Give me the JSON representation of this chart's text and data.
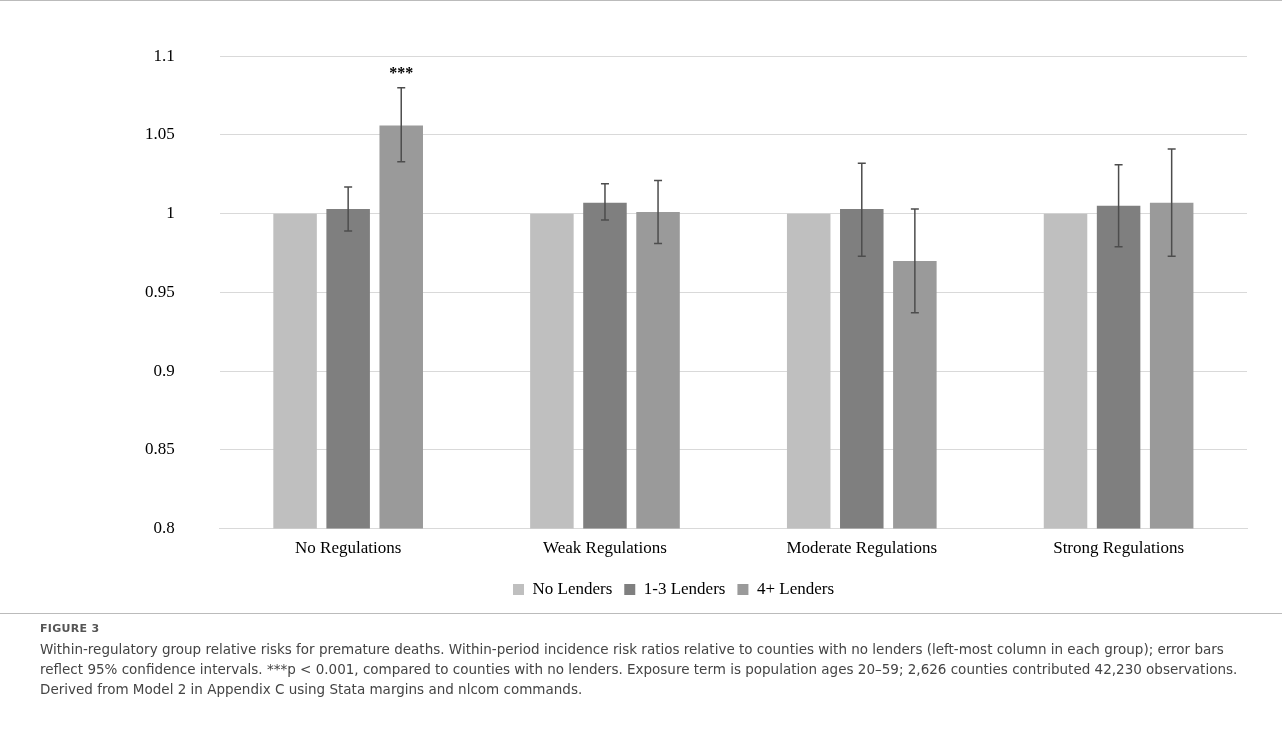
{
  "chart_data": {
    "type": "bar",
    "categories": [
      "No Regulations",
      "Weak Regulations",
      "Moderate Regulations",
      "Strong Regulations"
    ],
    "series": [
      {
        "name": "No Lenders",
        "color": "#bfbfbf",
        "values": [
          1,
          1,
          1,
          1
        ],
        "errors": [
          null,
          null,
          null,
          null
        ]
      },
      {
        "name": "1-3 Lenders",
        "color": "#7f7f7f",
        "values": [
          1.003,
          1.007,
          1.003,
          1.005
        ],
        "errors": [
          [
            0.989,
            1.017
          ],
          [
            0.996,
            1.019
          ],
          [
            0.973,
            1.032
          ],
          [
            0.979,
            1.031
          ]
        ]
      },
      {
        "name": "4+ Lenders",
        "color": "#9a9a9a",
        "values": [
          1.056,
          1.001,
          0.97,
          1.007
        ],
        "errors": [
          [
            1.033,
            1.08
          ],
          [
            0.981,
            1.021
          ],
          [
            0.937,
            1.003
          ],
          [
            0.973,
            1.041
          ]
        ]
      }
    ],
    "ylim": [
      0.8,
      1.1
    ],
    "yticks": [
      0.8,
      0.85,
      0.9,
      0.95,
      1,
      1.05,
      1.1
    ],
    "grid": "y",
    "legend": "bottom",
    "annotations": [
      "***",
      "FIGURE 3",
      "Within-regulatory group relative risks for premature deaths. Within-period incidence risk ratios relative to counties with no lenders (left-most column in each group); error bars reflect 95% confidence intervals. ***p < 0.001, compared to counties with no lenders. Exposure term is population ages 20–59; 2,626 counties contributed 42,230 observations. Derived from Model 2 in Appendix C using Stata margins and nlcom commands."
    ]
  }
}
